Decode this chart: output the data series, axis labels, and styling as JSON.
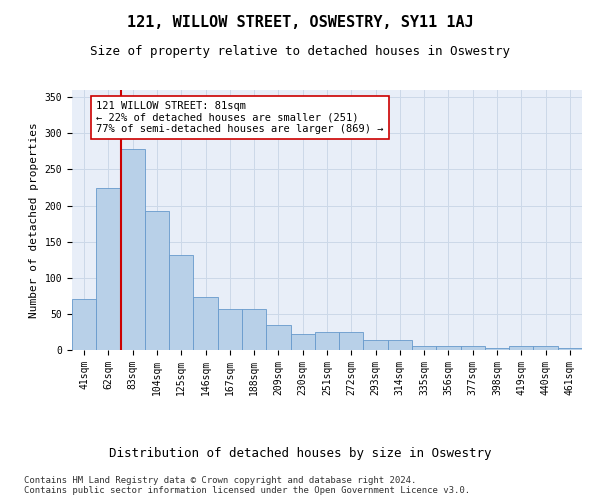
{
  "title": "121, WILLOW STREET, OSWESTRY, SY11 1AJ",
  "subtitle": "Size of property relative to detached houses in Oswestry",
  "xlabel_bottom": "Distribution of detached houses by size in Oswestry",
  "ylabel": "Number of detached properties",
  "categories": [
    "41sqm",
    "62sqm",
    "83sqm",
    "104sqm",
    "125sqm",
    "146sqm",
    "167sqm",
    "188sqm",
    "209sqm",
    "230sqm",
    "251sqm",
    "272sqm",
    "293sqm",
    "314sqm",
    "335sqm",
    "356sqm",
    "377sqm",
    "398sqm",
    "419sqm",
    "440sqm",
    "461sqm"
  ],
  "values": [
    70,
    224,
    278,
    192,
    132,
    73,
    57,
    57,
    35,
    22,
    25,
    25,
    14,
    14,
    6,
    6,
    6,
    3,
    5,
    5,
    3
  ],
  "bar_color": "#b8d0e8",
  "bar_edge_color": "#6699cc",
  "grid_color": "#ccd8e8",
  "background_color": "#e8eef8",
  "vline_color": "#cc0000",
  "annotation_text": "121 WILLOW STREET: 81sqm\n← 22% of detached houses are smaller (251)\n77% of semi-detached houses are larger (869) →",
  "annotation_box_color": "#ffffff",
  "annotation_box_edge": "#cc0000",
  "ylim": [
    0,
    360
  ],
  "yticks": [
    0,
    50,
    100,
    150,
    200,
    250,
    300,
    350
  ],
  "footnote": "Contains HM Land Registry data © Crown copyright and database right 2024.\nContains public sector information licensed under the Open Government Licence v3.0.",
  "title_fontsize": 11,
  "subtitle_fontsize": 9,
  "tick_fontsize": 7,
  "ylabel_fontsize": 8,
  "xlabel_bottom_fontsize": 9,
  "annotation_fontsize": 7.5,
  "footnote_fontsize": 6.5
}
